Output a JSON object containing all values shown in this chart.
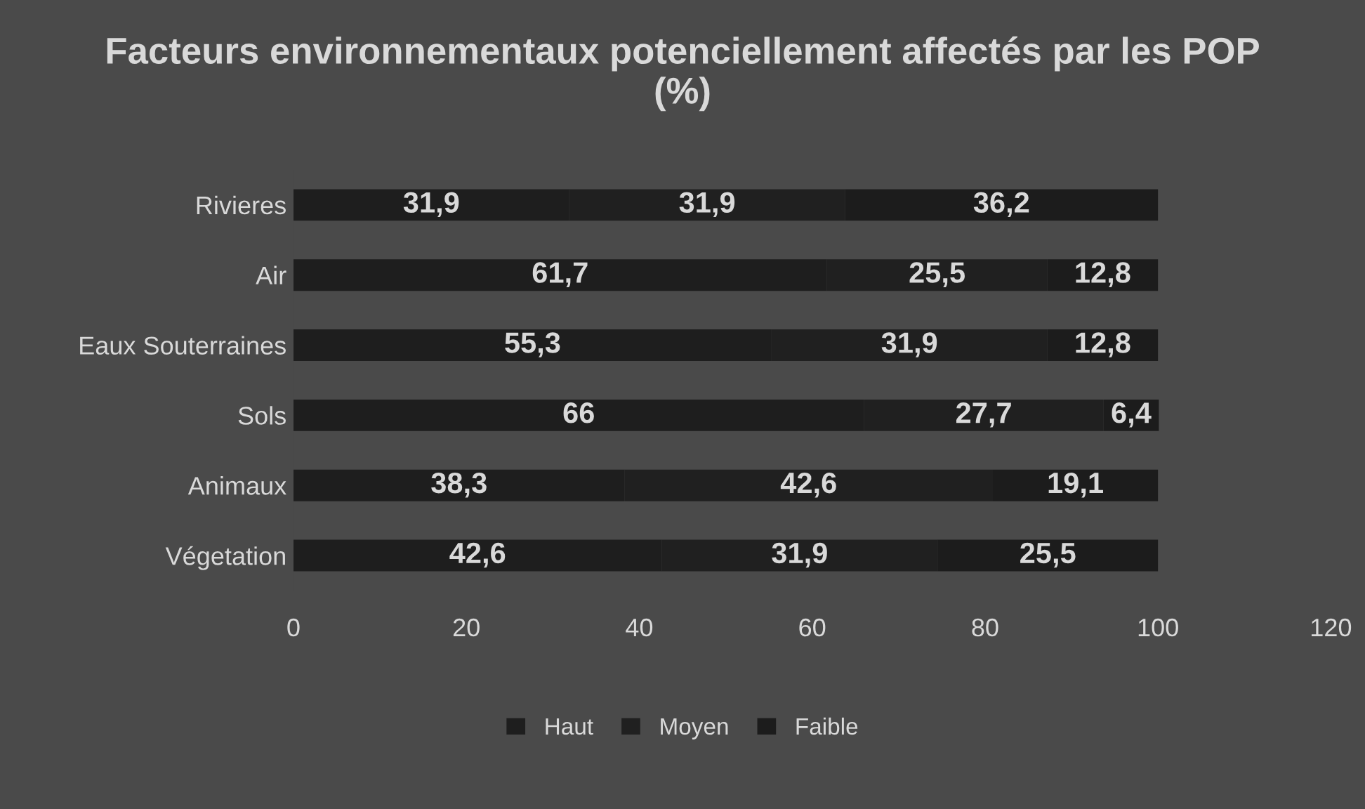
{
  "chart_data": {
    "type": "bar",
    "orientation": "horizontal",
    "stacked": true,
    "title": "Facteurs environnementaux potenciellement affectés par les POP\n(%)",
    "categories": [
      "Rivieres",
      "Air",
      "Eaux Souterraines",
      "Sols",
      "Animaux",
      "Végetation"
    ],
    "series": [
      {
        "name": "Haut",
        "color": "#1e1e1e",
        "values": [
          31.9,
          61.7,
          55.3,
          66,
          38.3,
          42.6
        ],
        "value_labels": [
          "31,9",
          "61,7",
          "55,3",
          "66",
          "38,3",
          "42,6"
        ]
      },
      {
        "name": "Moyen",
        "color": "#202020",
        "values": [
          31.9,
          25.5,
          31.9,
          27.7,
          42.6,
          31.9
        ],
        "value_labels": [
          "31,9",
          "25,5",
          "31,9",
          "27,7",
          "42,6",
          "31,9"
        ]
      },
      {
        "name": "Faible",
        "color": "#1c1c1c",
        "values": [
          36.2,
          12.8,
          12.8,
          6.4,
          19.1,
          25.5
        ],
        "value_labels": [
          "36,2",
          "12,8",
          "12,8",
          "6,4",
          "19,1",
          "25,5"
        ]
      }
    ],
    "xlim": [
      0,
      120
    ],
    "xticks": [
      0,
      20,
      40,
      60,
      80,
      100,
      120
    ],
    "grid": false,
    "legend": "bottom"
  }
}
